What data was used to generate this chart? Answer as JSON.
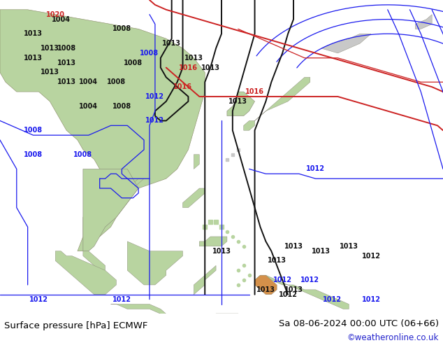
{
  "title_left": "Surface pressure [hPa] ECMWF",
  "title_right": "Sa 08-06-2024 00:00 UTC (06+66)",
  "credit": "©weatheronline.co.uk",
  "bg_ocean": "#e8eef2",
  "bg_land_green": "#b8d4a0",
  "bg_land_gray": "#c8c8c8",
  "bg_land_orange": "#d4904a",
  "bottom_bar_color": "#ffffff",
  "credit_color": "#2222cc",
  "text_color": "#000000",
  "contour_blue": "#1a1aee",
  "contour_red": "#cc2222",
  "contour_black": "#111111",
  "contour_gray": "#888888",
  "lw_main": 1.4,
  "lw_thin": 0.9,
  "title_fontsize": 9.5
}
